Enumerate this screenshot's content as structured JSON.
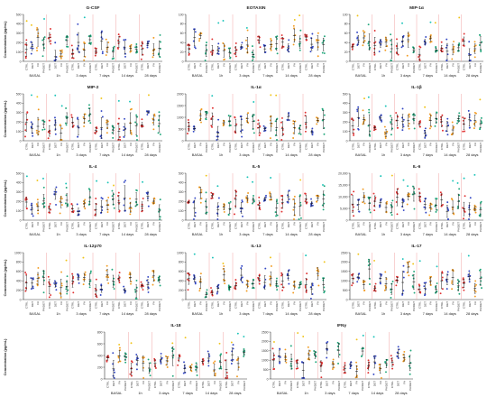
{
  "figure": {
    "y_axis_label": "Concentration (pg/mL)",
    "group_labels": [
      "CTRL",
      "DET",
      "FA",
      "PA/DET"
    ],
    "timepoints": [
      "BASAL",
      "1h",
      "3 days",
      "7 days",
      "14 days",
      "28 days"
    ],
    "group_colors": [
      "#e03030",
      "#3347c4",
      "#f29b21",
      "#1fa67a"
    ],
    "accent_colors": [
      "#19c3b8",
      "#f0c419"
    ],
    "divider_color": "#f2a6a6"
  },
  "chart_data": [
    {
      "type": "scatter",
      "title": "G-CSF",
      "yticks": [
        "0",
        "100",
        "200",
        "300",
        "400",
        "500"
      ],
      "show_ylabel": true
    },
    {
      "type": "scatter",
      "title": "EOTAXIN",
      "yticks": [
        "0",
        "20",
        "40",
        "60",
        "80",
        "100"
      ],
      "show_ylabel": false
    },
    {
      "type": "scatter",
      "title": "MIP-1α",
      "yticks": [
        "0",
        "20",
        "40",
        "60",
        "80",
        "100"
      ],
      "show_ylabel": false
    },
    {
      "type": "scatter",
      "title": "MIP-2",
      "yticks": [
        "0",
        "100",
        "200",
        "300",
        "400",
        "500"
      ],
      "show_ylabel": true
    },
    {
      "type": "scatter",
      "title": "IL-1α",
      "yticks": [
        "0",
        "500",
        "1000",
        "1500",
        "2000"
      ],
      "show_ylabel": false
    },
    {
      "type": "scatter",
      "title": "IL-1β",
      "yticks": [
        "0",
        "100",
        "200",
        "300",
        "400",
        "500"
      ],
      "show_ylabel": false
    },
    {
      "type": "scatter",
      "title": "IL-4",
      "yticks": [
        "0",
        "100",
        "200",
        "300",
        "400",
        "500"
      ],
      "show_ylabel": true
    },
    {
      "type": "scatter",
      "title": "IL-5",
      "yticks": [
        "0",
        "100",
        "200",
        "300",
        "400",
        "500"
      ],
      "show_ylabel": false
    },
    {
      "type": "scatter",
      "title": "IL-6",
      "yticks": [
        "0",
        "5,000",
        "10,000",
        "15,000",
        "20,000"
      ],
      "show_ylabel": false
    },
    {
      "type": "scatter",
      "title": "IL-12p70",
      "yticks": [
        "0",
        "200",
        "400",
        "600",
        "800",
        "1000"
      ],
      "show_ylabel": true
    },
    {
      "type": "scatter",
      "title": "IL-13",
      "yticks": [
        "0",
        "200",
        "400",
        "600",
        "800",
        "1000"
      ],
      "show_ylabel": false
    },
    {
      "type": "scatter",
      "title": "IL-17",
      "yticks": [
        "0",
        "500",
        "1000",
        "1500",
        "2000",
        "2500"
      ],
      "show_ylabel": false
    },
    {
      "type": "scatter",
      "title": "IL-18",
      "yticks": [
        "0",
        "200",
        "400",
        "600",
        "800"
      ],
      "show_ylabel": true
    },
    {
      "type": "scatter",
      "title": "IFNγ",
      "yticks": [
        "0",
        "500",
        "1000",
        "1500",
        "2000",
        "2500"
      ],
      "show_ylabel": false
    }
  ]
}
